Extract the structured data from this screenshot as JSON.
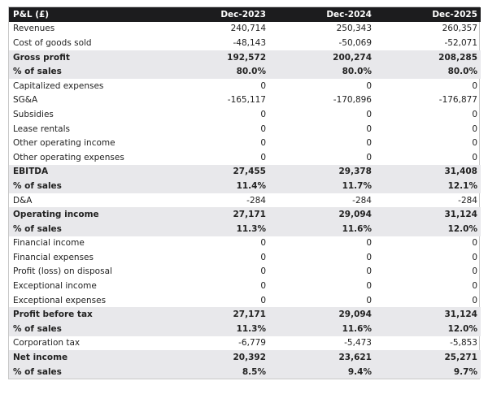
{
  "table": {
    "header": [
      "P&L (£)",
      "Dec-2023",
      "Dec-2024",
      "Dec-2025"
    ],
    "rows": [
      {
        "cells": [
          "Revenues",
          "240,714",
          "250,343",
          "260,357"
        ]
      },
      {
        "cells": [
          "Cost of goods sold",
          "-48,143",
          "-50,069",
          "-52,071"
        ]
      },
      {
        "cells": [
          "Gross profit",
          "192,572",
          "200,274",
          "208,285"
        ],
        "bold": true
      },
      {
        "cells": [
          "% of sales",
          "80.0%",
          "80.0%",
          "80.0%"
        ],
        "bold": true
      },
      {
        "cells": [
          "Capitalized expenses",
          "0",
          "0",
          "0"
        ]
      },
      {
        "cells": [
          "SG&A",
          "-165,117",
          "-170,896",
          "-176,877"
        ]
      },
      {
        "cells": [
          "Subsidies",
          "0",
          "0",
          "0"
        ]
      },
      {
        "cells": [
          "Lease rentals",
          "0",
          "0",
          "0"
        ]
      },
      {
        "cells": [
          "Other operating income",
          "0",
          "0",
          "0"
        ]
      },
      {
        "cells": [
          "Other operating expenses",
          "0",
          "0",
          "0"
        ]
      },
      {
        "cells": [
          "EBITDA",
          "27,455",
          "29,378",
          "31,408"
        ],
        "bold": true
      },
      {
        "cells": [
          "% of sales",
          "11.4%",
          "11.7%",
          "12.1%"
        ],
        "bold": true
      },
      {
        "cells": [
          "D&A",
          "-284",
          "-284",
          "-284"
        ]
      },
      {
        "cells": [
          "Operating income",
          "27,171",
          "29,094",
          "31,124"
        ],
        "bold": true
      },
      {
        "cells": [
          "% of sales",
          "11.3%",
          "11.6%",
          "12.0%"
        ],
        "bold": true
      },
      {
        "cells": [
          "Financial income",
          "0",
          "0",
          "0"
        ]
      },
      {
        "cells": [
          "Financial expenses",
          "0",
          "0",
          "0"
        ]
      },
      {
        "cells": [
          "Profit (loss) on disposal",
          "0",
          "0",
          "0"
        ]
      },
      {
        "cells": [
          "Exceptional income",
          "0",
          "0",
          "0"
        ]
      },
      {
        "cells": [
          "Exceptional expenses",
          "0",
          "0",
          "0"
        ]
      },
      {
        "cells": [
          "Profit before tax",
          "27,171",
          "29,094",
          "31,124"
        ],
        "bold": true
      },
      {
        "cells": [
          "% of sales",
          "11.3%",
          "11.6%",
          "12.0%"
        ],
        "bold": true
      },
      {
        "cells": [
          "Corporation tax",
          "-6,779",
          "-5,473",
          "-5,853"
        ]
      },
      {
        "cells": [
          "Net income",
          "20,392",
          "23,621",
          "25,271"
        ],
        "bold": true
      },
      {
        "cells": [
          "% of sales",
          "8.5%",
          "9.4%",
          "9.7%"
        ],
        "bold": true
      }
    ]
  }
}
